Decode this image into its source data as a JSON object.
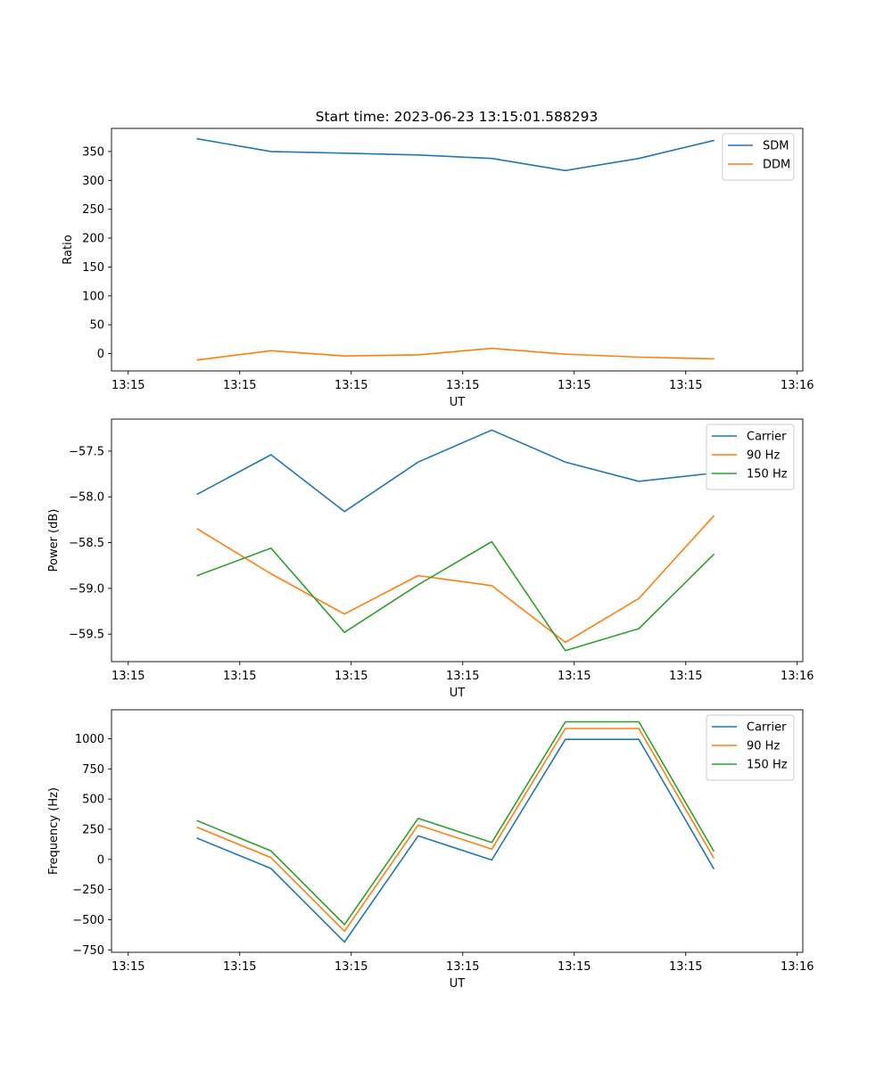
{
  "figure": {
    "title": "Start time: 2023-06-23 13:15:01.588293"
  },
  "colors": {
    "c0": "#1f77b4",
    "c1": "#ff7f0e",
    "c2": "#2ca02c"
  },
  "chart_data": [
    {
      "type": "line",
      "xlabel": "UT",
      "ylabel": "Ratio",
      "xlim": [
        -0.3,
        5.9
      ],
      "ylim": [
        -30,
        390
      ],
      "xtick_values": [
        -0.15,
        0.85,
        1.85,
        2.85,
        3.85,
        4.85,
        5.85
      ],
      "xtick_labels": [
        "13:15",
        "13:15",
        "13:15",
        "13:15",
        "13:15",
        "13:15",
        "13:16"
      ],
      "ytick_values": [
        0,
        50,
        100,
        150,
        200,
        250,
        300,
        350
      ],
      "ytick_labels": [
        "0",
        "50",
        "100",
        "150",
        "200",
        "250",
        "300",
        "350"
      ],
      "legend_position": "upper right",
      "series": [
        {
          "name": "SDM",
          "color": "#1f77b4",
          "x": [
            0.47,
            1.13,
            1.79,
            2.45,
            3.11,
            3.77,
            4.43,
            5.1
          ],
          "y": [
            372,
            350,
            347,
            344,
            338,
            317,
            338,
            369
          ]
        },
        {
          "name": "DDM",
          "color": "#ff7f0e",
          "x": [
            0.47,
            1.13,
            1.79,
            2.45,
            3.11,
            3.77,
            4.43,
            5.1
          ],
          "y": [
            -11,
            5,
            -4,
            -2,
            9,
            -1,
            -6,
            -9
          ]
        }
      ]
    },
    {
      "type": "line",
      "xlabel": "UT",
      "ylabel": "Power (dB)",
      "xlim": [
        -0.3,
        5.9
      ],
      "ylim": [
        -59.8,
        -57.15
      ],
      "xtick_values": [
        -0.15,
        0.85,
        1.85,
        2.85,
        3.85,
        4.85,
        5.85
      ],
      "xtick_labels": [
        "13:15",
        "13:15",
        "13:15",
        "13:15",
        "13:15",
        "13:15",
        "13:16"
      ],
      "ytick_values": [
        -57.5,
        -58.0,
        -58.5,
        -59.0,
        -59.5
      ],
      "ytick_labels": [
        "−57.5",
        "−58.0",
        "−58.5",
        "−59.0",
        "−59.5"
      ],
      "legend_position": "upper right",
      "series": [
        {
          "name": "Carrier",
          "color": "#1f77b4",
          "x": [
            0.47,
            1.13,
            1.79,
            2.45,
            3.11,
            3.77,
            4.43,
            5.1
          ],
          "y": [
            -57.97,
            -57.54,
            -58.16,
            -57.62,
            -57.27,
            -57.62,
            -57.83,
            -57.74
          ]
        },
        {
          "name": "90 Hz",
          "color": "#ff7f0e",
          "x": [
            0.47,
            1.13,
            1.79,
            2.45,
            3.11,
            3.77,
            4.43,
            5.1
          ],
          "y": [
            -58.35,
            -58.84,
            -59.28,
            -58.86,
            -58.97,
            -59.59,
            -59.11,
            -58.21
          ]
        },
        {
          "name": "150 Hz",
          "color": "#2ca02c",
          "x": [
            0.47,
            1.13,
            1.79,
            2.45,
            3.11,
            3.77,
            4.43,
            5.1
          ],
          "y": [
            -58.86,
            -58.56,
            -59.48,
            -58.96,
            -58.49,
            -59.68,
            -59.44,
            -58.63
          ]
        }
      ]
    },
    {
      "type": "line",
      "xlabel": "UT",
      "ylabel": "Frequency (Hz)",
      "xlim": [
        -0.3,
        5.9
      ],
      "ylim": [
        -770,
        1240
      ],
      "xtick_values": [
        -0.15,
        0.85,
        1.85,
        2.85,
        3.85,
        4.85,
        5.85
      ],
      "xtick_labels": [
        "13:15",
        "13:15",
        "13:15",
        "13:15",
        "13:15",
        "13:15",
        "13:16"
      ],
      "ytick_values": [
        1000,
        750,
        500,
        250,
        0,
        -250,
        -500,
        -750
      ],
      "ytick_labels": [
        "1000",
        "750",
        "500",
        "250",
        "0",
        "−250",
        "−500",
        "−750"
      ],
      "legend_position": "upper right",
      "series": [
        {
          "name": "Carrier",
          "color": "#1f77b4",
          "x": [
            0.47,
            1.13,
            1.79,
            2.45,
            3.11,
            3.77,
            4.43,
            5.1
          ],
          "y": [
            175,
            -75,
            -685,
            195,
            -5,
            995,
            995,
            -75
          ]
        },
        {
          "name": "90 Hz",
          "color": "#ff7f0e",
          "x": [
            0.47,
            1.13,
            1.79,
            2.45,
            3.11,
            3.77,
            4.43,
            5.1
          ],
          "y": [
            265,
            15,
            -595,
            285,
            85,
            1085,
            1085,
            15
          ]
        },
        {
          "name": "150 Hz",
          "color": "#2ca02c",
          "x": [
            0.47,
            1.13,
            1.79,
            2.45,
            3.11,
            3.77,
            4.43,
            5.1
          ],
          "y": [
            320,
            70,
            -540,
            340,
            140,
            1140,
            1140,
            70
          ]
        }
      ]
    }
  ]
}
